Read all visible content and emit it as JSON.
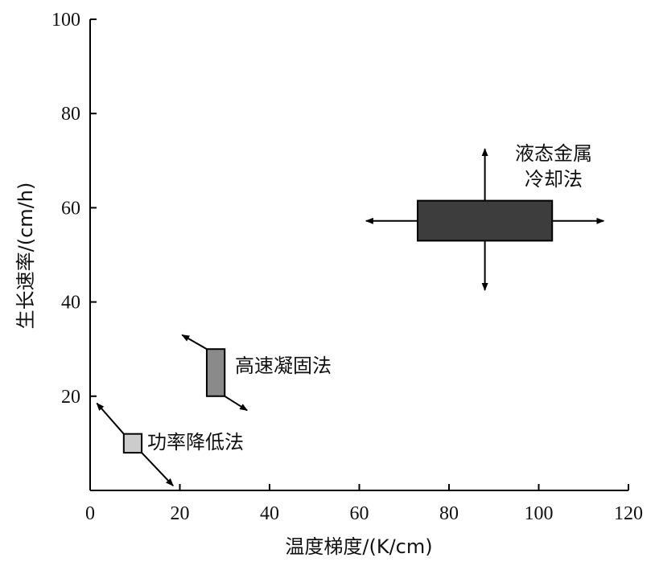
{
  "chart_data": {
    "type": "scatter",
    "xlabel": "温度梯度/(K/cm)",
    "ylabel": "生长速率/(cm/h)",
    "xlim": [
      0,
      120
    ],
    "ylim": [
      0,
      100
    ],
    "x_ticks": [
      0,
      20,
      40,
      60,
      80,
      100,
      120
    ],
    "y_ticks": [
      20,
      40,
      60,
      80,
      100
    ],
    "grid": false,
    "regions": [
      {
        "label": "功率降低法",
        "x_range": [
          7.5,
          11.5
        ],
        "y_range": [
          8,
          12
        ],
        "fill": "#cccccc",
        "arrows": [
          {
            "from": [
              7.5,
              12
            ],
            "to": [
              1.5,
              18.5
            ]
          },
          {
            "from": [
              11.5,
              8
            ],
            "to": [
              18.5,
              1
            ]
          }
        ]
      },
      {
        "label": "高速凝固法",
        "x_range": [
          26,
          30
        ],
        "y_range": [
          20,
          30
        ],
        "fill": "#8a8a8a",
        "arrows": [
          {
            "from": [
              26,
              30
            ],
            "to": [
              20.5,
              33
            ]
          },
          {
            "from": [
              30,
              20
            ],
            "to": [
              35,
              17
            ]
          }
        ]
      },
      {
        "label_lines": [
          "液态金属",
          "冷却法"
        ],
        "x_range": [
          73,
          103
        ],
        "y_range": [
          53,
          61.5
        ],
        "fill": "#3d3d3d",
        "arrows": [
          {
            "from": [
              88,
              61.5
            ],
            "to": [
              88,
              72.5
            ]
          },
          {
            "from": [
              88,
              53
            ],
            "to": [
              88,
              42.5
            ]
          },
          {
            "from": [
              73,
              57.2
            ],
            "to": [
              61.5,
              57.2
            ]
          },
          {
            "from": [
              103,
              57.2
            ],
            "to": [
              114.5,
              57.2
            ]
          }
        ]
      }
    ]
  }
}
